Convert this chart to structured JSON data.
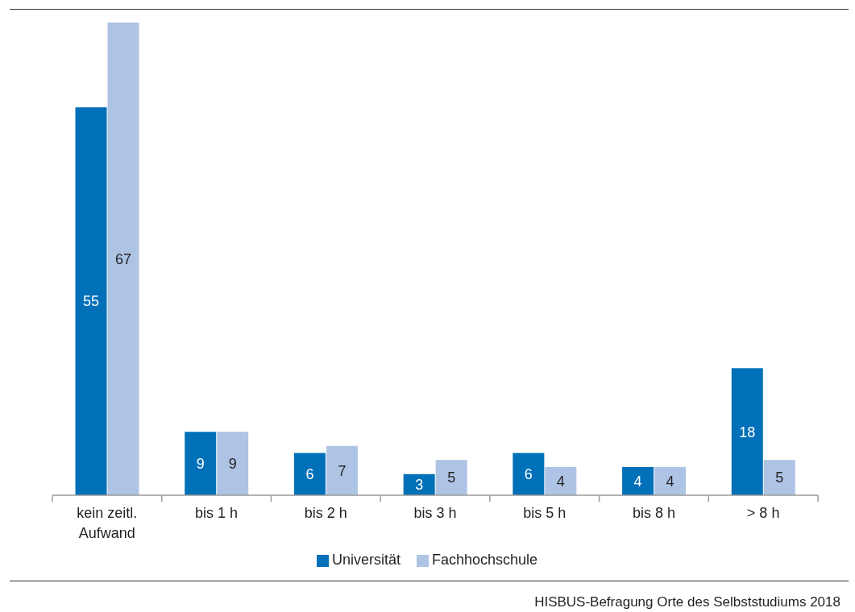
{
  "chart_data": {
    "type": "bar",
    "categories": [
      "kein zeitl. Aufwand",
      "bis 1 h",
      "bis 2 h",
      "bis 3 h",
      "bis 5 h",
      "bis 8 h",
      "> 8 h"
    ],
    "series": [
      {
        "name": "Universität",
        "color": "#0070b8",
        "values": [
          55,
          9,
          6,
          3,
          6,
          4,
          18
        ]
      },
      {
        "name": "Fachhochschule",
        "color": "#adc4e5",
        "values": [
          67,
          9,
          7,
          5,
          4,
          4,
          5
        ]
      }
    ],
    "data_labels": true,
    "legend": "bottom",
    "annotations": [
      "HISBUS-Befragung Orte des Selbststudiums 2018"
    ]
  }
}
